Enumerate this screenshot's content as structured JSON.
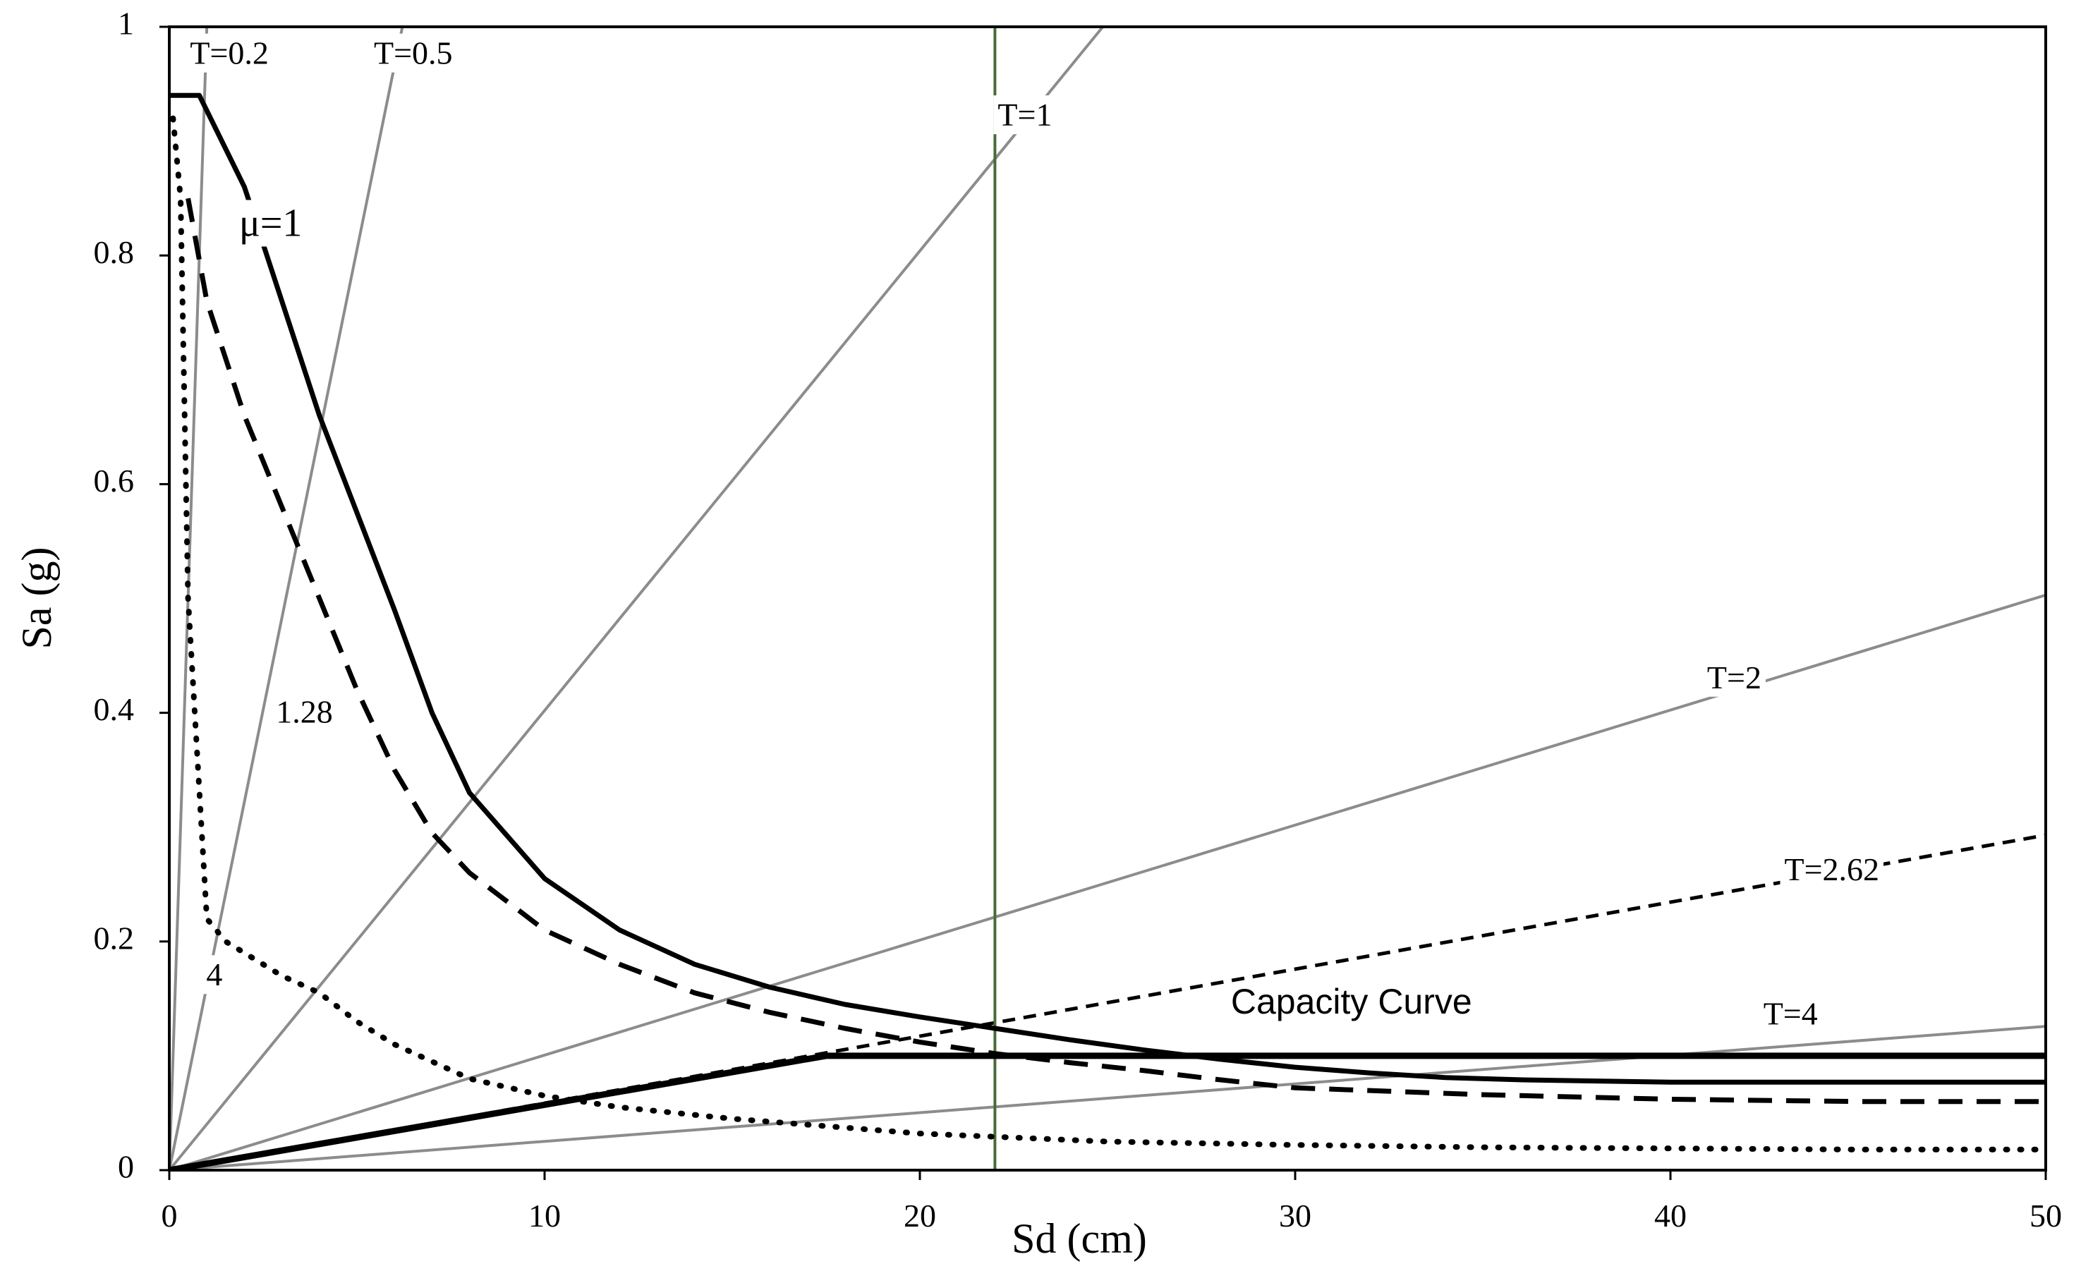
{
  "chart_data": {
    "type": "line",
    "title": "",
    "xlabel": "Sd (cm)",
    "ylabel": "Sa (g)",
    "xlim": [
      0,
      50
    ],
    "ylim": [
      0,
      1
    ],
    "xticks": [
      "0",
      "10",
      "20",
      "30",
      "40",
      "50"
    ],
    "yticks": [
      "0",
      "0.2",
      "0.4",
      "0.6",
      "0.8",
      "1"
    ],
    "grid": false,
    "colors": {
      "period_lines": "#8c8c8c",
      "demand": "#000000",
      "vertical_line": "#4a6a3a"
    },
    "period_lines": [
      {
        "label": "T=0.2",
        "slope": 1.0,
        "label_at": [
          1.6,
          0.974
        ]
      },
      {
        "label": "T=0.5",
        "slope": 0.161,
        "label_at": [
          6.5,
          0.974
        ]
      },
      {
        "label": "T=1",
        "slope": 0.0402,
        "label_at": [
          22.8,
          0.92
        ]
      },
      {
        "label": "T=2",
        "slope": 0.01006,
        "label_at": [
          41.7,
          0.428
        ]
      },
      {
        "label": "T=2.62",
        "slope": 0.00586,
        "label_at": [
          44.3,
          0.26
        ]
      },
      {
        "label": "T=4",
        "slope": 0.002515,
        "label_at": [
          43.2,
          0.134
        ]
      }
    ],
    "demand_spectra": [
      {
        "label": "μ=1",
        "style": "solid",
        "label_at": [
          2.7,
          0.825
        ],
        "x": [
          0,
          0.8,
          2,
          4,
          6,
          7,
          8,
          10,
          12,
          14,
          16,
          18,
          20,
          22,
          24,
          26,
          28,
          30,
          32,
          34,
          36,
          38,
          40,
          45,
          50
        ],
        "y": [
          0.94,
          0.94,
          0.86,
          0.66,
          0.49,
          0.4,
          0.33,
          0.255,
          0.21,
          0.18,
          0.16,
          0.145,
          0.134,
          0.124,
          0.114,
          0.105,
          0.097,
          0.09,
          0.085,
          0.081,
          0.079,
          0.078,
          0.077,
          0.077,
          0.077
        ]
      },
      {
        "label": "1.28",
        "style": "dashed",
        "label_at": [
          3.6,
          0.398
        ],
        "x": [
          0.5,
          1,
          2,
          3,
          4,
          5,
          6,
          7,
          8,
          10,
          12,
          14,
          16,
          18,
          20,
          22,
          24,
          26,
          28,
          30,
          35,
          40,
          45,
          50
        ],
        "y": [
          0.85,
          0.76,
          0.66,
          0.58,
          0.5,
          0.42,
          0.35,
          0.295,
          0.26,
          0.21,
          0.18,
          0.155,
          0.138,
          0.124,
          0.112,
          0.102,
          0.094,
          0.087,
          0.079,
          0.072,
          0.066,
          0.062,
          0.06,
          0.06
        ]
      },
      {
        "label": "4",
        "style": "dotted",
        "label_at": [
          1.2,
          0.168
        ],
        "x": [
          0.1,
          0.3,
          0.5,
          1,
          1.5,
          2,
          3,
          4,
          5,
          6,
          8,
          10,
          12,
          15,
          20,
          25,
          30,
          35,
          40,
          45,
          50
        ],
        "y": [
          0.92,
          0.85,
          0.5,
          0.22,
          0.2,
          0.19,
          0.17,
          0.155,
          0.13,
          0.11,
          0.08,
          0.065,
          0.055,
          0.045,
          0.032,
          0.025,
          0.022,
          0.02,
          0.019,
          0.018,
          0.018
        ]
      }
    ],
    "capacity_curve": {
      "label": "Capacity Curve",
      "label_at": [
        31.5,
        0.145
      ],
      "x": [
        0,
        17.5,
        50
      ],
      "y": [
        0,
        0.1,
        0.1
      ]
    },
    "vertical_line": {
      "x": 22
    }
  }
}
